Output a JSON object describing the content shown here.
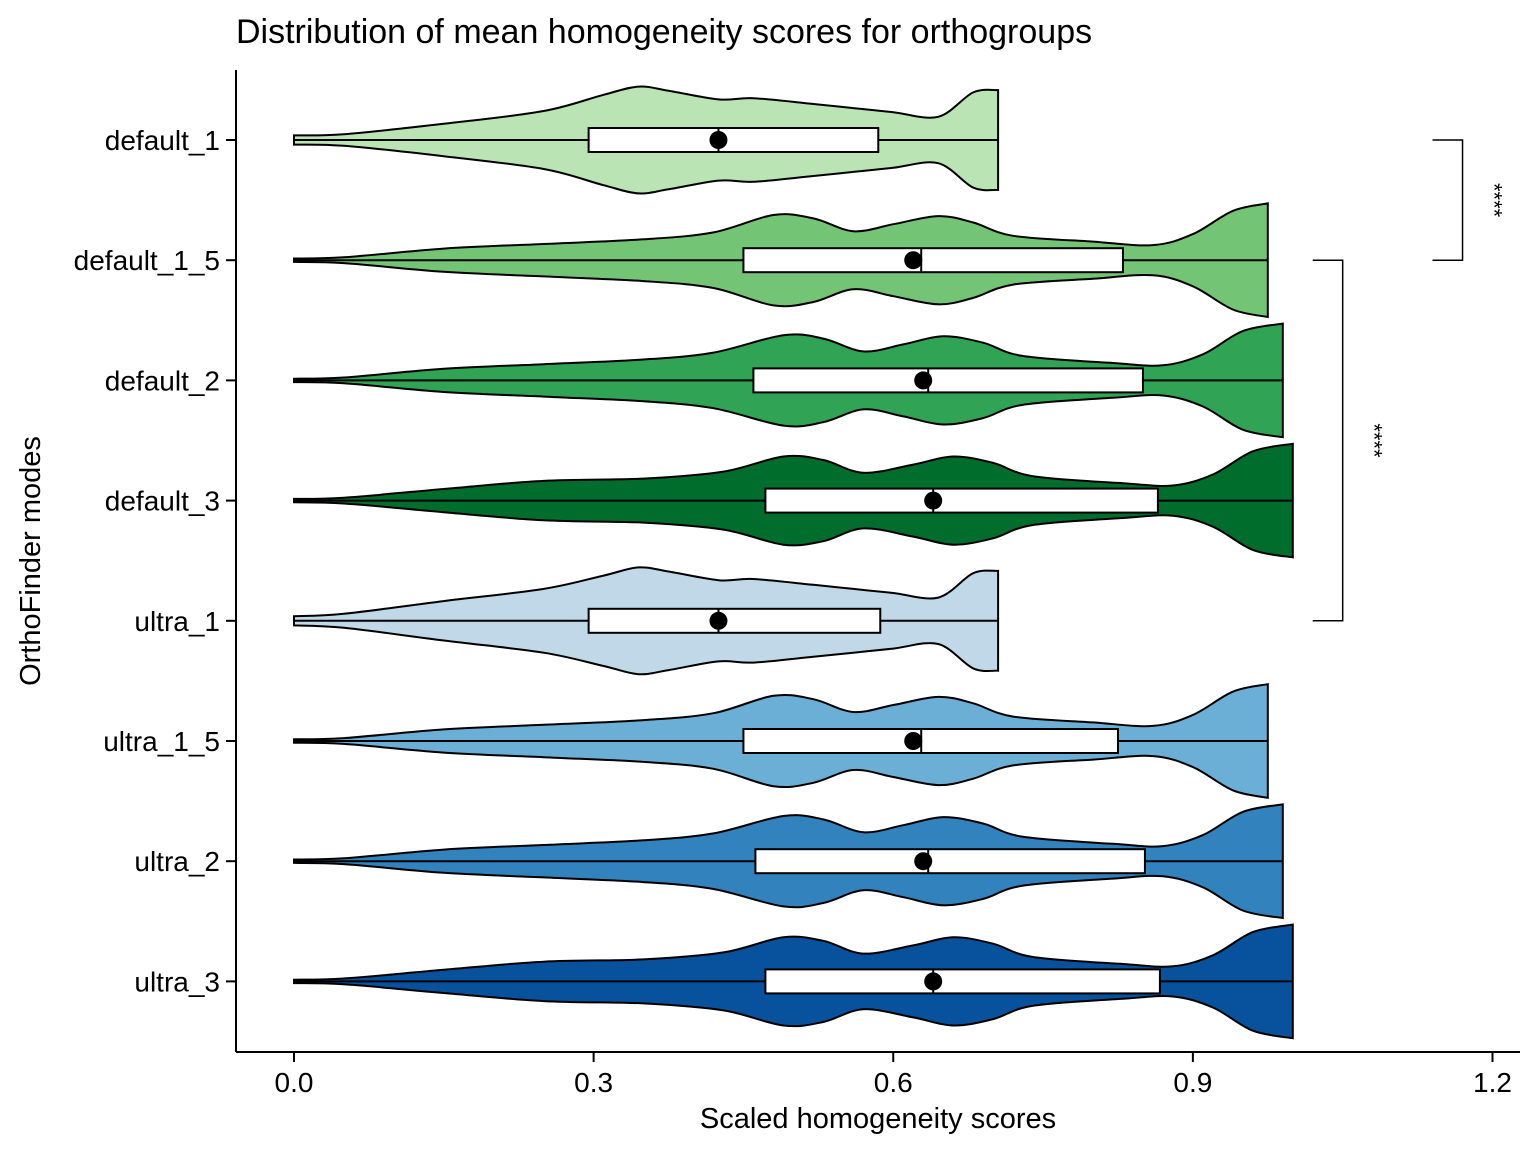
{
  "chart_data": {
    "type": "violin",
    "title": "Distribution of mean homogeneity scores for orthogroups",
    "xlabel": "Scaled homogeneity scores",
    "ylabel": "OrthoFinder modes",
    "xlim": [
      -0.02,
      1.21
    ],
    "xticks": [
      "0.0",
      "0.3",
      "0.6",
      "0.9",
      "1.2"
    ],
    "xtick_values": [
      0.0,
      0.3,
      0.6,
      0.9,
      1.2
    ],
    "categories": [
      "default_1",
      "default_1_5",
      "default_2",
      "default_3",
      "ultra_1",
      "ultra_1_5",
      "ultra_2",
      "ultra_3"
    ],
    "series": [
      {
        "name": "default_1",
        "color": "#bae4b3",
        "min": 0.0,
        "max": 0.705,
        "q1": 0.295,
        "median": 0.425,
        "q3": 0.585,
        "mean": 0.425,
        "density": [
          [
            0.0,
            0.08
          ],
          [
            0.05,
            0.1
          ],
          [
            0.15,
            0.28
          ],
          [
            0.25,
            0.5
          ],
          [
            0.31,
            0.78
          ],
          [
            0.345,
            0.92
          ],
          [
            0.375,
            0.85
          ],
          [
            0.425,
            0.7
          ],
          [
            0.46,
            0.72
          ],
          [
            0.52,
            0.62
          ],
          [
            0.56,
            0.55
          ],
          [
            0.6,
            0.48
          ],
          [
            0.645,
            0.4
          ],
          [
            0.68,
            0.82
          ],
          [
            0.705,
            0.86
          ]
        ]
      },
      {
        "name": "default_1_5",
        "color": "#74c476",
        "min": 0.0,
        "max": 0.975,
        "q1": 0.45,
        "median": 0.628,
        "q3": 0.83,
        "mean": 0.62,
        "density": [
          [
            0.0,
            0.03
          ],
          [
            0.05,
            0.05
          ],
          [
            0.15,
            0.2
          ],
          [
            0.25,
            0.28
          ],
          [
            0.35,
            0.36
          ],
          [
            0.42,
            0.48
          ],
          [
            0.48,
            0.78
          ],
          [
            0.52,
            0.72
          ],
          [
            0.56,
            0.5
          ],
          [
            0.6,
            0.62
          ],
          [
            0.645,
            0.76
          ],
          [
            0.68,
            0.65
          ],
          [
            0.72,
            0.42
          ],
          [
            0.8,
            0.32
          ],
          [
            0.86,
            0.26
          ],
          [
            0.9,
            0.45
          ],
          [
            0.94,
            0.85
          ],
          [
            0.975,
            0.98
          ]
        ]
      },
      {
        "name": "default_2",
        "color": "#31a354",
        "min": 0.0,
        "max": 0.99,
        "q1": 0.46,
        "median": 0.635,
        "q3": 0.85,
        "mean": 0.63,
        "density": [
          [
            0.0,
            0.03
          ],
          [
            0.05,
            0.05
          ],
          [
            0.15,
            0.2
          ],
          [
            0.25,
            0.28
          ],
          [
            0.35,
            0.36
          ],
          [
            0.42,
            0.48
          ],
          [
            0.49,
            0.78
          ],
          [
            0.53,
            0.72
          ],
          [
            0.57,
            0.5
          ],
          [
            0.61,
            0.62
          ],
          [
            0.65,
            0.76
          ],
          [
            0.69,
            0.65
          ],
          [
            0.73,
            0.42
          ],
          [
            0.82,
            0.3
          ],
          [
            0.87,
            0.26
          ],
          [
            0.91,
            0.45
          ],
          [
            0.95,
            0.85
          ],
          [
            0.99,
            0.98
          ]
        ]
      },
      {
        "name": "default_3",
        "color": "#006d2c",
        "min": 0.0,
        "max": 1.0,
        "q1": 0.472,
        "median": 0.64,
        "q3": 0.865,
        "mean": 0.64,
        "density": [
          [
            0.0,
            0.03
          ],
          [
            0.05,
            0.05
          ],
          [
            0.15,
            0.2
          ],
          [
            0.25,
            0.34
          ],
          [
            0.35,
            0.38
          ],
          [
            0.43,
            0.5
          ],
          [
            0.49,
            0.76
          ],
          [
            0.53,
            0.7
          ],
          [
            0.57,
            0.48
          ],
          [
            0.62,
            0.62
          ],
          [
            0.66,
            0.76
          ],
          [
            0.7,
            0.65
          ],
          [
            0.74,
            0.42
          ],
          [
            0.83,
            0.3
          ],
          [
            0.88,
            0.26
          ],
          [
            0.92,
            0.45
          ],
          [
            0.96,
            0.85
          ],
          [
            1.0,
            0.98
          ]
        ]
      },
      {
        "name": "ultra_1",
        "color": "#c1d8e8",
        "min": 0.0,
        "max": 0.705,
        "q1": 0.295,
        "median": 0.425,
        "q3": 0.587,
        "mean": 0.425,
        "density": [
          [
            0.0,
            0.08
          ],
          [
            0.05,
            0.12
          ],
          [
            0.15,
            0.34
          ],
          [
            0.25,
            0.55
          ],
          [
            0.31,
            0.78
          ],
          [
            0.345,
            0.92
          ],
          [
            0.375,
            0.85
          ],
          [
            0.425,
            0.7
          ],
          [
            0.46,
            0.72
          ],
          [
            0.52,
            0.62
          ],
          [
            0.56,
            0.55
          ],
          [
            0.6,
            0.48
          ],
          [
            0.645,
            0.4
          ],
          [
            0.68,
            0.82
          ],
          [
            0.705,
            0.86
          ]
        ]
      },
      {
        "name": "ultra_1_5",
        "color": "#6baed6",
        "min": 0.0,
        "max": 0.975,
        "q1": 0.45,
        "median": 0.628,
        "q3": 0.825,
        "mean": 0.62,
        "density": [
          [
            0.0,
            0.03
          ],
          [
            0.05,
            0.05
          ],
          [
            0.15,
            0.2
          ],
          [
            0.25,
            0.28
          ],
          [
            0.35,
            0.36
          ],
          [
            0.42,
            0.48
          ],
          [
            0.48,
            0.78
          ],
          [
            0.52,
            0.72
          ],
          [
            0.56,
            0.5
          ],
          [
            0.6,
            0.62
          ],
          [
            0.645,
            0.76
          ],
          [
            0.68,
            0.65
          ],
          [
            0.72,
            0.42
          ],
          [
            0.8,
            0.32
          ],
          [
            0.86,
            0.26
          ],
          [
            0.9,
            0.45
          ],
          [
            0.94,
            0.85
          ],
          [
            0.975,
            0.98
          ]
        ]
      },
      {
        "name": "ultra_2",
        "color": "#3182bd",
        "min": 0.0,
        "max": 0.99,
        "q1": 0.462,
        "median": 0.635,
        "q3": 0.852,
        "mean": 0.63,
        "density": [
          [
            0.0,
            0.03
          ],
          [
            0.05,
            0.05
          ],
          [
            0.15,
            0.2
          ],
          [
            0.25,
            0.28
          ],
          [
            0.35,
            0.36
          ],
          [
            0.42,
            0.48
          ],
          [
            0.49,
            0.78
          ],
          [
            0.53,
            0.72
          ],
          [
            0.57,
            0.5
          ],
          [
            0.61,
            0.62
          ],
          [
            0.65,
            0.76
          ],
          [
            0.69,
            0.65
          ],
          [
            0.73,
            0.42
          ],
          [
            0.82,
            0.3
          ],
          [
            0.87,
            0.26
          ],
          [
            0.91,
            0.45
          ],
          [
            0.95,
            0.85
          ],
          [
            0.99,
            0.98
          ]
        ]
      },
      {
        "name": "ultra_3",
        "color": "#08519c",
        "min": 0.0,
        "max": 1.0,
        "q1": 0.472,
        "median": 0.64,
        "q3": 0.867,
        "mean": 0.64,
        "density": [
          [
            0.0,
            0.03
          ],
          [
            0.05,
            0.05
          ],
          [
            0.15,
            0.2
          ],
          [
            0.25,
            0.34
          ],
          [
            0.35,
            0.38
          ],
          [
            0.43,
            0.5
          ],
          [
            0.49,
            0.76
          ],
          [
            0.53,
            0.7
          ],
          [
            0.57,
            0.48
          ],
          [
            0.62,
            0.62
          ],
          [
            0.66,
            0.76
          ],
          [
            0.7,
            0.65
          ],
          [
            0.74,
            0.42
          ],
          [
            0.83,
            0.3
          ],
          [
            0.88,
            0.26
          ],
          [
            0.92,
            0.45
          ],
          [
            0.96,
            0.85
          ],
          [
            1.0,
            0.98
          ]
        ]
      }
    ],
    "significance": [
      {
        "from": "default_1",
        "to": "default_1_5",
        "label": "****",
        "x": 1.17
      },
      {
        "from": "default_1_5",
        "to": "ultra_1",
        "label": "****",
        "x": 1.05
      }
    ],
    "grid": false,
    "legend": "none"
  }
}
